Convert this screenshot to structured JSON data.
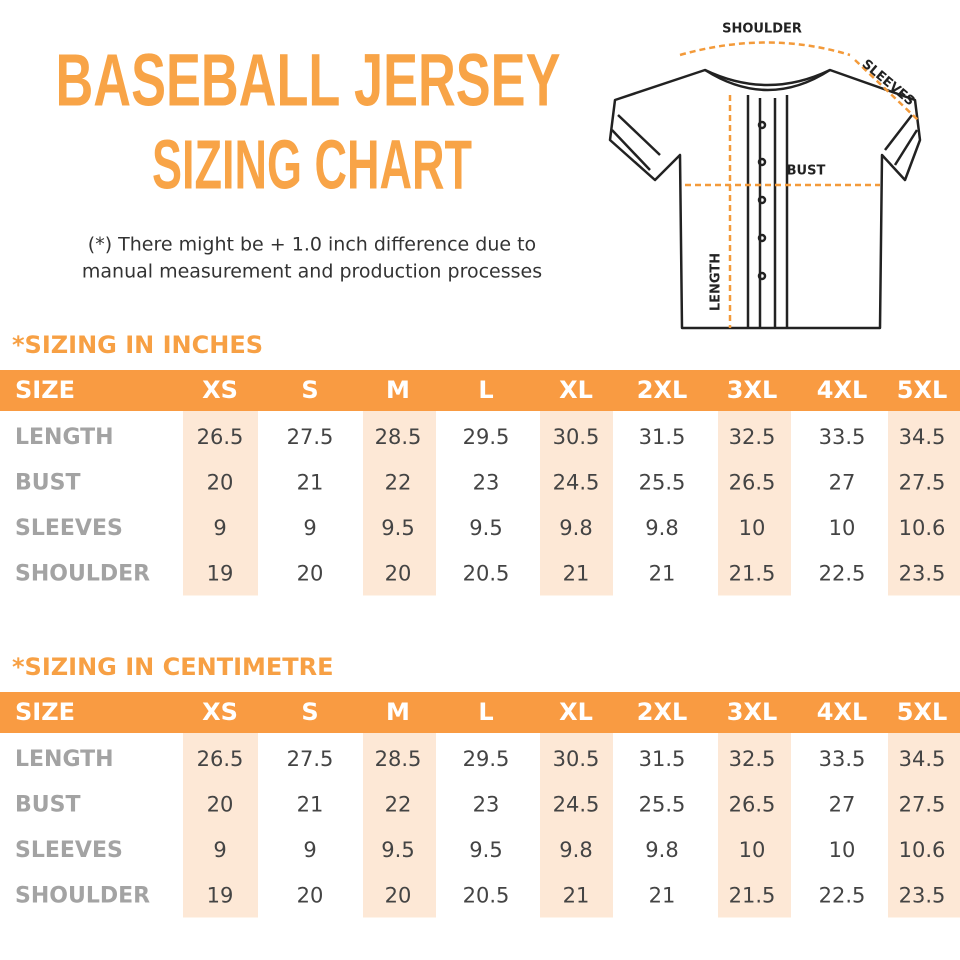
{
  "header": {
    "title": "BASEBALL JERSEY",
    "subtitle": "SIZING CHART",
    "note": [
      "(*) There might be + 1.0 inch difference due to",
      "manual measurement and production processes"
    ]
  },
  "diagram": {
    "labels": {
      "shoulder": "SHOULDER",
      "sleeves": "SLEEVES",
      "bust": "BUST",
      "length": "LENGTH"
    }
  },
  "tables": [
    {
      "heading": "*SIZING IN INCHES",
      "columns": [
        "SIZE",
        "XS",
        "S",
        "M",
        "L",
        "XL",
        "2XL",
        "3XL",
        "4XL",
        "5XL"
      ],
      "rows": [
        [
          "LENGTH",
          "26.5",
          "27.5",
          "28.5",
          "29.5",
          "30.5",
          "31.5",
          "32.5",
          "33.5",
          "34.5"
        ],
        [
          "BUST",
          "20",
          "21",
          "22",
          "23",
          "24.5",
          "25.5",
          "26.5",
          "27",
          "27.5"
        ],
        [
          "SLEEVES",
          "9",
          "9",
          "9.5",
          "9.5",
          "9.8",
          "9.8",
          "10",
          "10",
          "10.6"
        ],
        [
          "SHOULDER",
          "19",
          "20",
          "20",
          "20.5",
          "21",
          "21",
          "21.5",
          "22.5",
          "23.5"
        ]
      ]
    },
    {
      "heading": "*SIZING IN CENTIMETRE",
      "columns": [
        "SIZE",
        "XS",
        "S",
        "M",
        "L",
        "XL",
        "2XL",
        "3XL",
        "4XL",
        "5XL"
      ],
      "rows": [
        [
          "LENGTH",
          "26.5",
          "27.5",
          "28.5",
          "29.5",
          "30.5",
          "31.5",
          "32.5",
          "33.5",
          "34.5"
        ],
        [
          "BUST",
          "20",
          "21",
          "22",
          "23",
          "24.5",
          "25.5",
          "26.5",
          "27",
          "27.5"
        ],
        [
          "SLEEVES",
          "9",
          "9",
          "9.5",
          "9.5",
          "9.8",
          "9.8",
          "10",
          "10",
          "10.6"
        ],
        [
          "SHOULDER",
          "19",
          "20",
          "20",
          "20.5",
          "21",
          "21",
          "21.5",
          "22.5",
          "23.5"
        ]
      ]
    }
  ]
}
